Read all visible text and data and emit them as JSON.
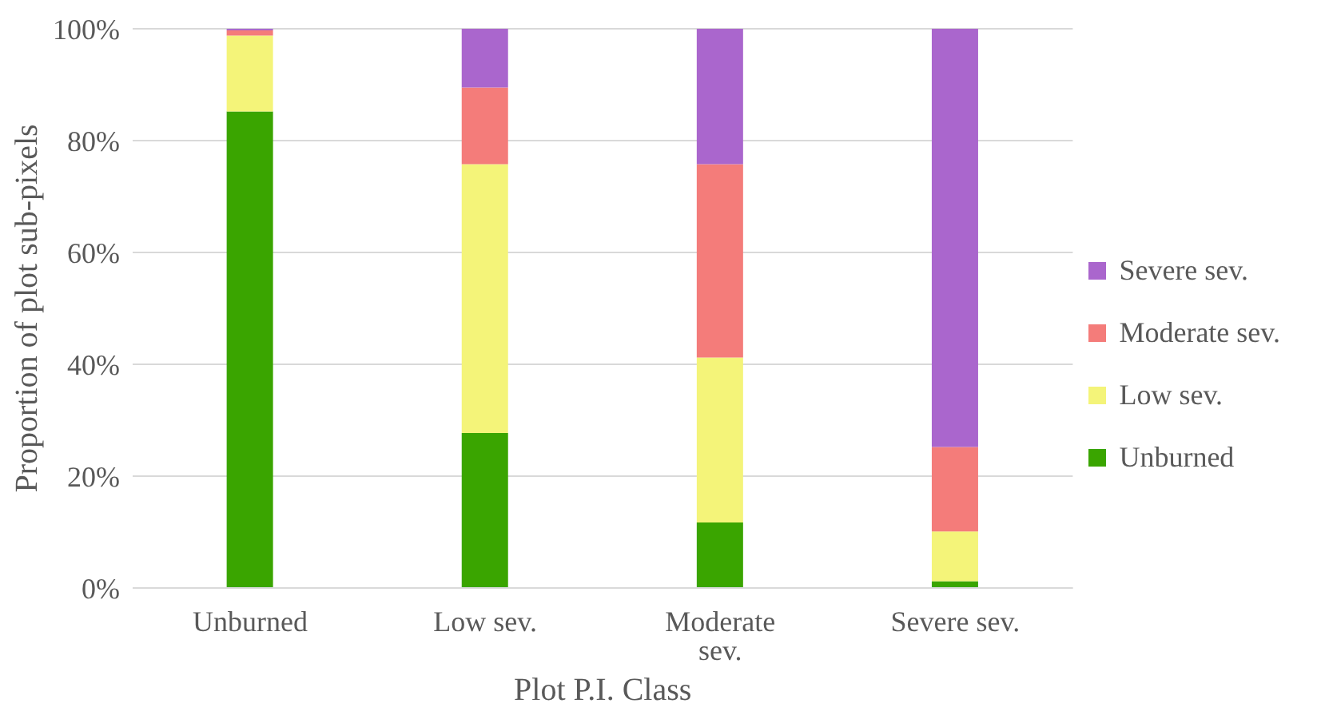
{
  "chart_data": {
    "type": "bar",
    "stacked": true,
    "xlabel": "Plot P.I. Class",
    "ylabel": "Proportion of plot sub-pixels",
    "categories": [
      "Unburned",
      "Low sev.",
      "Moderate sev.",
      "Severe sev."
    ],
    "series": [
      {
        "name": "Unburned",
        "color": "#3aa500",
        "values": [
          85.2,
          27.7,
          11.7,
          1.2
        ]
      },
      {
        "name": "Low sev.",
        "color": "#f4f479",
        "values": [
          13.6,
          48.1,
          29.5,
          8.9
        ]
      },
      {
        "name": "Moderate sev.",
        "color": "#f47c7a",
        "values": [
          0.9,
          13.7,
          34.6,
          15.1
        ]
      },
      {
        "name": "Severe sev.",
        "color": "#aa66cd",
        "values": [
          0.3,
          10.5,
          24.2,
          74.8
        ]
      }
    ],
    "ylim": [
      0,
      100
    ],
    "yticks": [
      {
        "value": 0,
        "label": "0%"
      },
      {
        "value": 20,
        "label": "20%"
      },
      {
        "value": 40,
        "label": "40%"
      },
      {
        "value": 60,
        "label": "60%"
      },
      {
        "value": 80,
        "label": "80%"
      },
      {
        "value": 100,
        "label": "100%"
      }
    ],
    "grid": "y",
    "legend": "right"
  }
}
